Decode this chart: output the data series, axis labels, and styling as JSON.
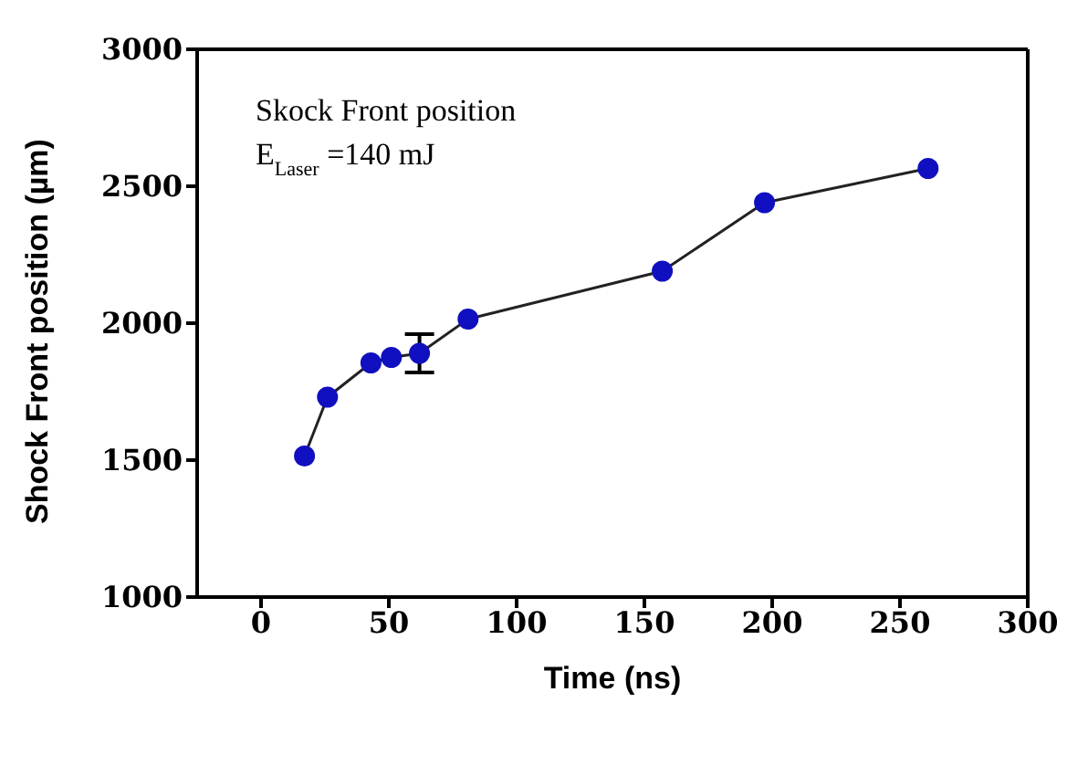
{
  "chart_data": {
    "type": "line",
    "xlabel": "Time (ns)",
    "ylabel": "Shock Front position (µm)",
    "annotations": [
      "Skock Front position",
      "E$_{Laser}$ =140 mJ"
    ],
    "x": [
      17,
      26,
      43,
      51,
      62,
      81,
      157,
      197,
      261
    ],
    "series": [
      {
        "color": "#1010c0",
        "values": [
          1515,
          1730,
          1855,
          1875,
          1890,
          2015,
          2190,
          2440,
          2565
        ],
        "errors": [
          null,
          null,
          null,
          null,
          70,
          null,
          null,
          null,
          null
        ]
      }
    ],
    "xlim": [
      -25,
      300
    ],
    "xticks": [
      0,
      50,
      100,
      150,
      200,
      250,
      300
    ],
    "ylim": [
      1000,
      3000
    ],
    "yticks": [
      1000,
      1500,
      2000,
      2500,
      3000
    ],
    "grid": false,
    "legend": false,
    "marker": "circle",
    "line_style": "solid"
  }
}
